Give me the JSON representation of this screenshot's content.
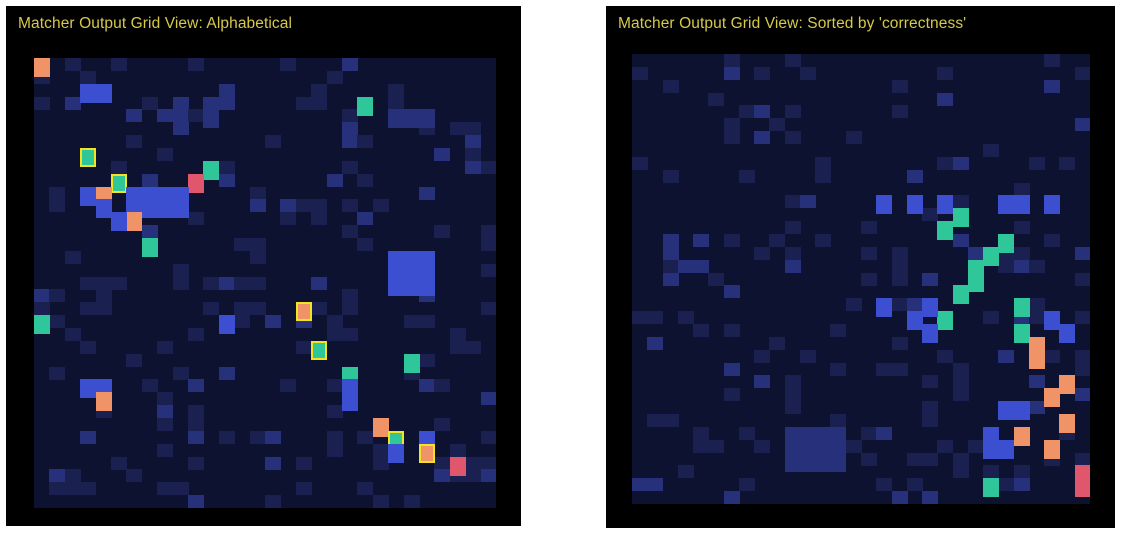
{
  "colors": {
    "background": "#0d1230",
    "cell_low": "#1a2150",
    "cell_mid": "#27307a",
    "cell_high": "#3b4fd0",
    "match_teal": "#2fc79a",
    "match_orange": "#f09468",
    "match_red": "#e0566c",
    "highlight_border": "#f2e422",
    "title": "#d6c94a"
  },
  "left_panel": {
    "title": "Matcher Output Grid View: Alphabetical",
    "grid": {
      "cols": 30,
      "rows": 35
    },
    "cells": [
      {
        "c": 0,
        "r": 0,
        "v": "orange"
      },
      {
        "c": 3,
        "r": 2,
        "v": "high"
      },
      {
        "c": 4,
        "r": 2,
        "v": "high"
      },
      {
        "c": 11,
        "r": 3,
        "v": "mid"
      },
      {
        "c": 11,
        "r": 4,
        "v": "mid"
      },
      {
        "c": 21,
        "r": 3,
        "v": "teal"
      },
      {
        "c": 23,
        "r": 4,
        "v": "mid"
      },
      {
        "c": 24,
        "r": 4,
        "v": "mid"
      },
      {
        "c": 25,
        "r": 4,
        "v": "mid"
      },
      {
        "c": 3,
        "r": 7,
        "v": "teal",
        "hl": true
      },
      {
        "c": 11,
        "r": 8,
        "v": "teal"
      },
      {
        "c": 5,
        "r": 9,
        "v": "teal",
        "hl": true
      },
      {
        "c": 10,
        "r": 9,
        "v": "red"
      },
      {
        "c": 4,
        "r": 10,
        "v": "orange"
      },
      {
        "c": 3,
        "r": 10,
        "v": "high"
      },
      {
        "c": 6,
        "r": 10,
        "v": "high"
      },
      {
        "c": 7,
        "r": 10,
        "v": "high"
      },
      {
        "c": 8,
        "r": 10,
        "v": "high"
      },
      {
        "c": 9,
        "r": 10,
        "v": "high"
      },
      {
        "c": 4,
        "r": 11,
        "v": "high"
      },
      {
        "c": 6,
        "r": 11,
        "v": "high"
      },
      {
        "c": 7,
        "r": 11,
        "v": "high"
      },
      {
        "c": 8,
        "r": 11,
        "v": "high"
      },
      {
        "c": 9,
        "r": 11,
        "v": "high"
      },
      {
        "c": 6,
        "r": 12,
        "v": "orange"
      },
      {
        "c": 5,
        "r": 12,
        "v": "high"
      },
      {
        "c": 7,
        "r": 14,
        "v": "teal"
      },
      {
        "c": 23,
        "r": 15,
        "v": "high"
      },
      {
        "c": 24,
        "r": 15,
        "v": "high"
      },
      {
        "c": 25,
        "r": 15,
        "v": "high"
      },
      {
        "c": 23,
        "r": 16,
        "v": "high"
      },
      {
        "c": 24,
        "r": 16,
        "v": "high"
      },
      {
        "c": 25,
        "r": 16,
        "v": "high"
      },
      {
        "c": 23,
        "r": 17,
        "v": "high"
      },
      {
        "c": 24,
        "r": 17,
        "v": "high"
      },
      {
        "c": 25,
        "r": 17,
        "v": "high"
      },
      {
        "c": 17,
        "r": 19,
        "v": "orange",
        "hl": true
      },
      {
        "c": 0,
        "r": 20,
        "v": "teal"
      },
      {
        "c": 12,
        "r": 20,
        "v": "high"
      },
      {
        "c": 18,
        "r": 22,
        "v": "teal",
        "hl": true
      },
      {
        "c": 24,
        "r": 23,
        "v": "teal"
      },
      {
        "c": 20,
        "r": 24,
        "v": "teal"
      },
      {
        "c": 4,
        "r": 25,
        "v": "high"
      },
      {
        "c": 3,
        "r": 25,
        "v": "high"
      },
      {
        "c": 20,
        "r": 25,
        "v": "high"
      },
      {
        "c": 20,
        "r": 26,
        "v": "high"
      },
      {
        "c": 4,
        "r": 26,
        "v": "orange"
      },
      {
        "c": 22,
        "r": 28,
        "v": "orange"
      },
      {
        "c": 23,
        "r": 29,
        "v": "teal",
        "hl": true
      },
      {
        "c": 25,
        "r": 29,
        "v": "high"
      },
      {
        "c": 23,
        "r": 30,
        "v": "high"
      },
      {
        "c": 25,
        "r": 30,
        "v": "orange",
        "hl": true
      },
      {
        "c": 27,
        "r": 31,
        "v": "red"
      }
    ]
  },
  "right_panel": {
    "title": "Matcher Output Grid View: Sorted by 'correctness'",
    "grid": {
      "cols": 30,
      "rows": 35
    },
    "cells": [
      {
        "c": 16,
        "r": 11,
        "v": "high"
      },
      {
        "c": 18,
        "r": 11,
        "v": "high"
      },
      {
        "c": 20,
        "r": 11,
        "v": "high"
      },
      {
        "c": 24,
        "r": 11,
        "v": "high"
      },
      {
        "c": 25,
        "r": 11,
        "v": "high"
      },
      {
        "c": 27,
        "r": 11,
        "v": "high"
      },
      {
        "c": 21,
        "r": 12,
        "v": "teal"
      },
      {
        "c": 20,
        "r": 13,
        "v": "teal"
      },
      {
        "c": 24,
        "r": 14,
        "v": "teal"
      },
      {
        "c": 23,
        "r": 15,
        "v": "teal"
      },
      {
        "c": 22,
        "r": 16,
        "v": "teal"
      },
      {
        "c": 22,
        "r": 17,
        "v": "teal"
      },
      {
        "c": 21,
        "r": 18,
        "v": "teal"
      },
      {
        "c": 25,
        "r": 19,
        "v": "teal"
      },
      {
        "c": 20,
        "r": 20,
        "v": "teal"
      },
      {
        "c": 18,
        "r": 20,
        "v": "high"
      },
      {
        "c": 19,
        "r": 19,
        "v": "high"
      },
      {
        "c": 16,
        "r": 19,
        "v": "high"
      },
      {
        "c": 27,
        "r": 20,
        "v": "high"
      },
      {
        "c": 25,
        "r": 21,
        "v": "teal"
      },
      {
        "c": 28,
        "r": 21,
        "v": "high"
      },
      {
        "c": 19,
        "r": 21,
        "v": "high"
      },
      {
        "c": 26,
        "r": 23,
        "v": "orange"
      },
      {
        "c": 26,
        "r": 22,
        "v": "orange"
      },
      {
        "c": 28,
        "r": 25,
        "v": "orange"
      },
      {
        "c": 27,
        "r": 26,
        "v": "orange"
      },
      {
        "c": 28,
        "r": 28,
        "v": "orange"
      },
      {
        "c": 24,
        "r": 27,
        "v": "high"
      },
      {
        "c": 25,
        "r": 27,
        "v": "high"
      },
      {
        "c": 23,
        "r": 29,
        "v": "high"
      },
      {
        "c": 23,
        "r": 30,
        "v": "high"
      },
      {
        "c": 24,
        "r": 30,
        "v": "high"
      },
      {
        "c": 25,
        "r": 29,
        "v": "orange"
      },
      {
        "c": 27,
        "r": 30,
        "v": "orange"
      },
      {
        "c": 29,
        "r": 32,
        "v": "red"
      },
      {
        "c": 29,
        "r": 33,
        "v": "red"
      },
      {
        "c": 23,
        "r": 33,
        "v": "teal"
      },
      {
        "c": 10,
        "r": 29,
        "v": "mid"
      },
      {
        "c": 11,
        "r": 29,
        "v": "mid"
      },
      {
        "c": 12,
        "r": 29,
        "v": "mid"
      },
      {
        "c": 13,
        "r": 29,
        "v": "mid"
      },
      {
        "c": 10,
        "r": 30,
        "v": "mid"
      },
      {
        "c": 11,
        "r": 30,
        "v": "mid"
      },
      {
        "c": 12,
        "r": 30,
        "v": "mid"
      },
      {
        "c": 13,
        "r": 30,
        "v": "mid"
      },
      {
        "c": 10,
        "r": 31,
        "v": "mid"
      },
      {
        "c": 11,
        "r": 31,
        "v": "mid"
      },
      {
        "c": 12,
        "r": 31,
        "v": "mid"
      },
      {
        "c": 13,
        "r": 31,
        "v": "mid"
      }
    ]
  }
}
